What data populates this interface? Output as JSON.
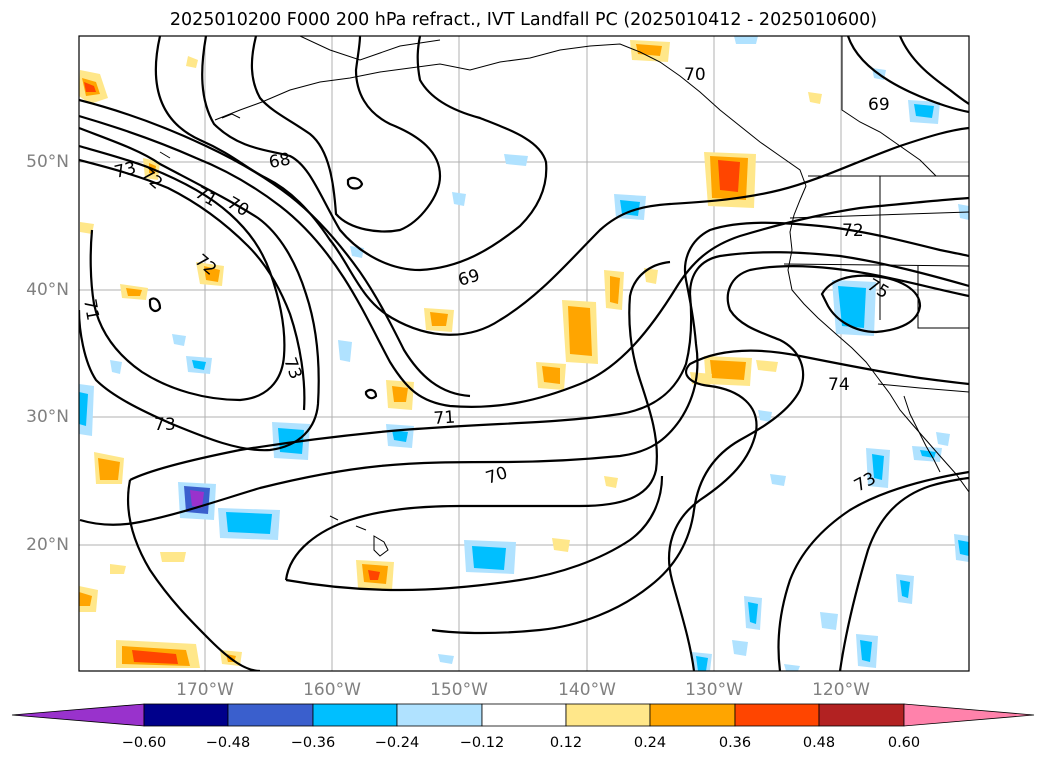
{
  "title": "2025010200 F000 200 hPa refract., IVT Landfall PC (2025010412 - 2025010600)",
  "lon_labels": [
    "170°W",
    "160°W",
    "150°W",
    "140°W",
    "130°W",
    "120°W"
  ],
  "lat_labels": [
    "50°N",
    "40°N",
    "30°N",
    "20°N"
  ],
  "contour_labels": [
    "70",
    "69",
    "68",
    "73",
    "71",
    "70",
    "72",
    "72",
    "71",
    "73",
    "73",
    "69",
    "71",
    "70",
    "75",
    "74",
    "73"
  ],
  "colorbar": {
    "ticks": [
      "−0.60",
      "−0.48",
      "−0.36",
      "−0.24",
      "−0.12",
      "0.12",
      "0.24",
      "0.36",
      "0.48",
      "0.60"
    ],
    "colors": [
      "#9932cc",
      "#00008b",
      "#3a5fcd",
      "#00bfff",
      "#b0e2ff",
      "#ffffff",
      "#ffe78a",
      "#ffa500",
      "#ff4500",
      "#b22222",
      "#ff82ab"
    ]
  },
  "map_colors": {
    "line": "#000000",
    "grid": "#b0b0b0",
    "frame": "#000000"
  }
}
